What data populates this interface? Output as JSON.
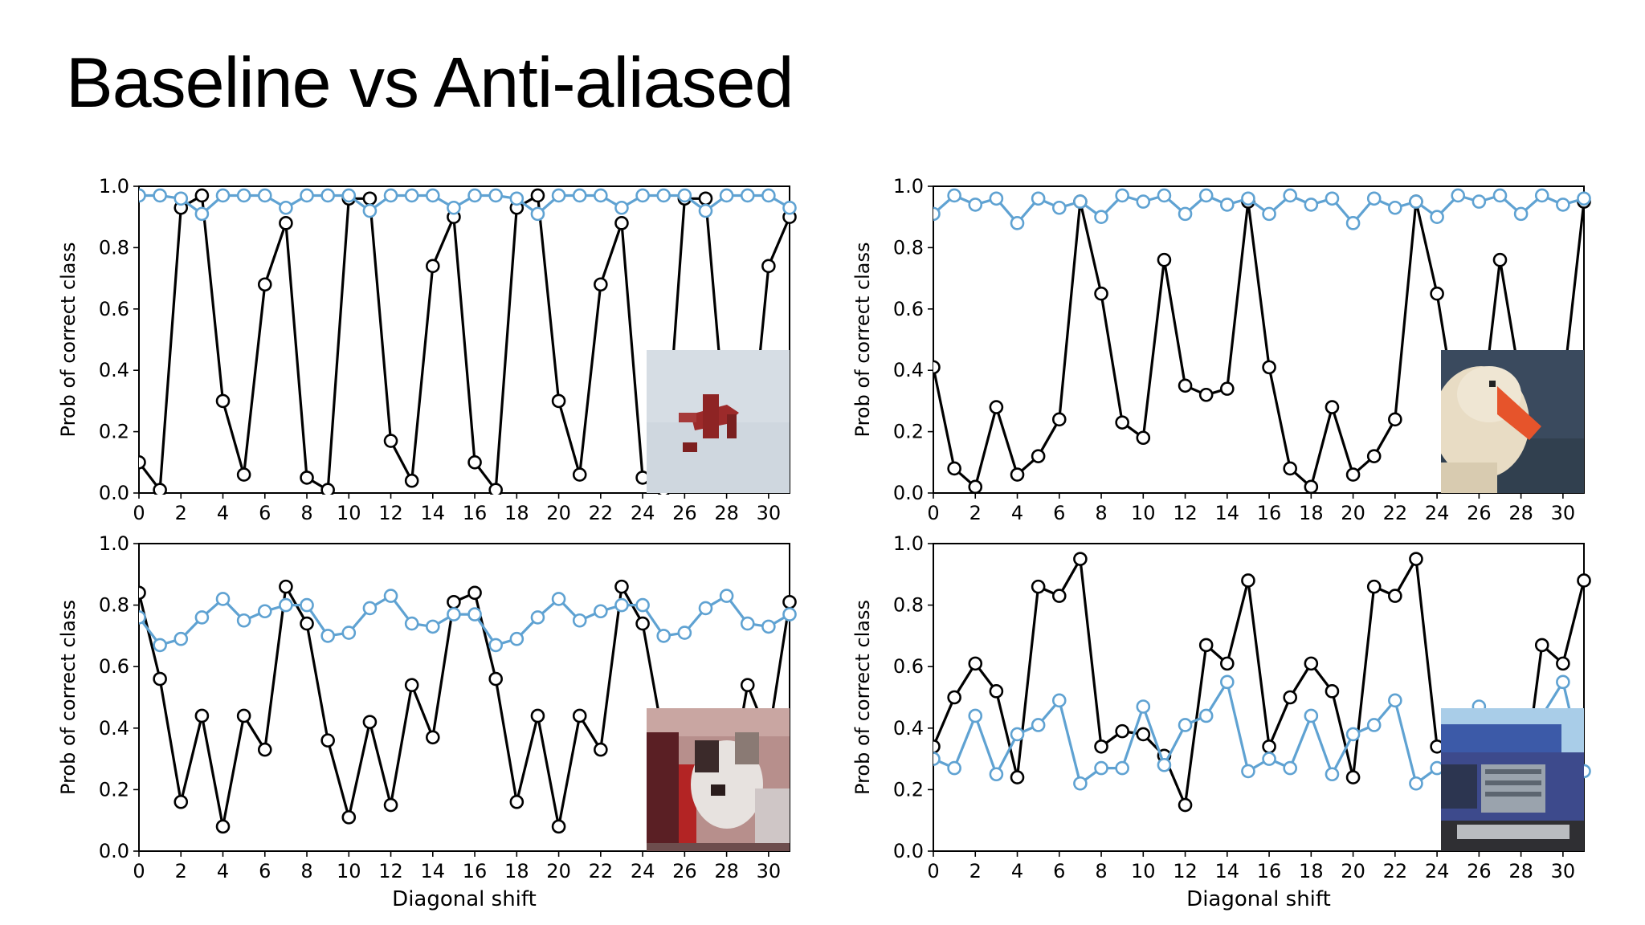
{
  "slide": {
    "title": "Baseline vs Anti-aliased"
  },
  "colors": {
    "baseline": "#000000",
    "antialiased": "#5fa2d2",
    "axis": "#000000"
  },
  "chart_data": [
    {
      "type": "line",
      "xlabel": "",
      "ylabel": "Prob of correct class",
      "xlim": [
        0,
        31
      ],
      "ylim": [
        0,
        1
      ],
      "xticks": [
        "0",
        "2",
        "4",
        "6",
        "8",
        "10",
        "12",
        "14",
        "16",
        "18",
        "20",
        "22",
        "24",
        "26",
        "28",
        "30"
      ],
      "yticks": [
        "0.0",
        "0.2",
        "0.4",
        "0.6",
        "0.8",
        "1.0"
      ],
      "image_icon": "airplane-thumbnail",
      "x": [
        0,
        1,
        2,
        3,
        4,
        5,
        6,
        7,
        8,
        9,
        10,
        11,
        12,
        13,
        14,
        15,
        16,
        17,
        18,
        19,
        20,
        21,
        22,
        23,
        24,
        25,
        26,
        27,
        28,
        29,
        30,
        31
      ],
      "series": [
        {
          "key": "baseline",
          "values": [
            0.1,
            0.01,
            0.93,
            0.97,
            0.3,
            0.06,
            0.68,
            0.88,
            0.05,
            0.01,
            0.96,
            0.96,
            0.17,
            0.04,
            0.74,
            0.9,
            0.1,
            0.01,
            0.93,
            0.97,
            0.3,
            0.06,
            0.68,
            0.88,
            0.05,
            0.01,
            0.96,
            0.96,
            0.17,
            0.04,
            0.74,
            0.9
          ]
        },
        {
          "key": "antialiased",
          "values": [
            0.97,
            0.97,
            0.96,
            0.91,
            0.97,
            0.97,
            0.97,
            0.93,
            0.97,
            0.97,
            0.97,
            0.92,
            0.97,
            0.97,
            0.97,
            0.93,
            0.97,
            0.97,
            0.96,
            0.91,
            0.97,
            0.97,
            0.97,
            0.93,
            0.97,
            0.97,
            0.97,
            0.92,
            0.97,
            0.97,
            0.97,
            0.93
          ]
        }
      ]
    },
    {
      "type": "line",
      "xlabel": "",
      "ylabel": "Prob of correct class",
      "xlim": [
        0,
        31
      ],
      "ylim": [
        0,
        1
      ],
      "xticks": [
        "0",
        "2",
        "4",
        "6",
        "8",
        "10",
        "12",
        "14",
        "16",
        "18",
        "20",
        "22",
        "24",
        "26",
        "28",
        "30"
      ],
      "yticks": [
        "0.0",
        "0.2",
        "0.4",
        "0.6",
        "0.8",
        "1.0"
      ],
      "image_icon": "bird-thumbnail",
      "x": [
        0,
        1,
        2,
        3,
        4,
        5,
        6,
        7,
        8,
        9,
        10,
        11,
        12,
        13,
        14,
        15,
        16,
        17,
        18,
        19,
        20,
        21,
        22,
        23,
        24,
        25,
        26,
        27,
        28,
        29,
        30,
        31
      ],
      "series": [
        {
          "key": "baseline",
          "values": [
            0.41,
            0.08,
            0.02,
            0.28,
            0.06,
            0.12,
            0.24,
            0.95,
            0.65,
            0.23,
            0.18,
            0.76,
            0.35,
            0.32,
            0.34,
            0.95,
            0.41,
            0.08,
            0.02,
            0.28,
            0.06,
            0.12,
            0.24,
            0.95,
            0.65,
            0.23,
            0.18,
            0.76,
            0.35,
            0.32,
            0.34,
            0.95
          ]
        },
        {
          "key": "antialiased",
          "values": [
            0.91,
            0.97,
            0.94,
            0.96,
            0.88,
            0.96,
            0.93,
            0.95,
            0.9,
            0.97,
            0.95,
            0.97,
            0.91,
            0.97,
            0.94,
            0.96,
            0.91,
            0.97,
            0.94,
            0.96,
            0.88,
            0.96,
            0.93,
            0.95,
            0.9,
            0.97,
            0.95,
            0.97,
            0.91,
            0.97,
            0.94,
            0.96
          ]
        }
      ]
    },
    {
      "type": "line",
      "xlabel": "Diagonal shift",
      "ylabel": "Prob of correct class",
      "xlim": [
        0,
        31
      ],
      "ylim": [
        0,
        1
      ],
      "xticks": [
        "0",
        "2",
        "4",
        "6",
        "8",
        "10",
        "12",
        "14",
        "16",
        "18",
        "20",
        "22",
        "24",
        "26",
        "28",
        "30"
      ],
      "yticks": [
        "0.0",
        "0.2",
        "0.4",
        "0.6",
        "0.8",
        "1.0"
      ],
      "image_icon": "dog-thumbnail",
      "x": [
        0,
        1,
        2,
        3,
        4,
        5,
        6,
        7,
        8,
        9,
        10,
        11,
        12,
        13,
        14,
        15,
        16,
        17,
        18,
        19,
        20,
        21,
        22,
        23,
        24,
        25,
        26,
        27,
        28,
        29,
        30,
        31
      ],
      "series": [
        {
          "key": "baseline",
          "values": [
            0.84,
            0.56,
            0.16,
            0.44,
            0.08,
            0.44,
            0.33,
            0.86,
            0.74,
            0.36,
            0.11,
            0.42,
            0.15,
            0.54,
            0.37,
            0.81,
            0.84,
            0.56,
            0.16,
            0.44,
            0.08,
            0.44,
            0.33,
            0.86,
            0.74,
            0.36,
            0.11,
            0.42,
            0.15,
            0.54,
            0.37,
            0.81
          ]
        },
        {
          "key": "antialiased",
          "values": [
            0.76,
            0.67,
            0.69,
            0.76,
            0.82,
            0.75,
            0.78,
            0.8,
            0.8,
            0.7,
            0.71,
            0.79,
            0.83,
            0.74,
            0.73,
            0.77,
            0.77,
            0.67,
            0.69,
            0.76,
            0.82,
            0.75,
            0.78,
            0.8,
            0.8,
            0.7,
            0.71,
            0.79,
            0.83,
            0.74,
            0.73,
            0.77
          ]
        }
      ]
    },
    {
      "type": "line",
      "xlabel": "Diagonal shift",
      "ylabel": "Prob of correct class",
      "xlim": [
        0,
        31
      ],
      "ylim": [
        0,
        1
      ],
      "xticks": [
        "0",
        "2",
        "4",
        "6",
        "8",
        "10",
        "12",
        "14",
        "16",
        "18",
        "20",
        "22",
        "24",
        "26",
        "28",
        "30"
      ],
      "yticks": [
        "0.0",
        "0.2",
        "0.4",
        "0.6",
        "0.8",
        "1.0"
      ],
      "image_icon": "truck-thumbnail",
      "x": [
        0,
        1,
        2,
        3,
        4,
        5,
        6,
        7,
        8,
        9,
        10,
        11,
        12,
        13,
        14,
        15,
        16,
        17,
        18,
        19,
        20,
        21,
        22,
        23,
        24,
        25,
        26,
        27,
        28,
        29,
        30,
        31
      ],
      "series": [
        {
          "key": "baseline",
          "values": [
            0.34,
            0.5,
            0.61,
            0.52,
            0.24,
            0.86,
            0.83,
            0.95,
            0.34,
            0.39,
            0.38,
            0.31,
            0.15,
            0.67,
            0.61,
            0.88,
            0.34,
            0.5,
            0.61,
            0.52,
            0.24,
            0.86,
            0.83,
            0.95,
            0.34,
            0.39,
            0.38,
            0.31,
            0.15,
            0.67,
            0.61,
            0.88
          ]
        },
        {
          "key": "antialiased",
          "values": [
            0.3,
            0.27,
            0.44,
            0.25,
            0.38,
            0.41,
            0.49,
            0.22,
            0.27,
            0.27,
            0.47,
            0.28,
            0.41,
            0.44,
            0.55,
            0.26,
            0.3,
            0.27,
            0.44,
            0.25,
            0.38,
            0.41,
            0.49,
            0.22,
            0.27,
            0.27,
            0.47,
            0.28,
            0.41,
            0.44,
            0.55,
            0.26
          ]
        }
      ]
    }
  ]
}
